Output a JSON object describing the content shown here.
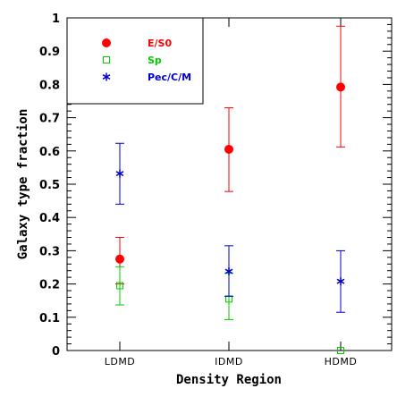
{
  "chart_data": {
    "type": "scatter",
    "title": "",
    "xlabel": "Density Region",
    "ylabel": "Galaxy type fraction",
    "categories": [
      "LDMD",
      "IDMD",
      "HDMD"
    ],
    "ylim": [
      0,
      1
    ],
    "yticks": [
      0,
      0.1,
      0.2,
      0.3,
      0.4,
      0.5,
      0.6,
      0.7,
      0.8,
      0.9,
      1
    ],
    "ytick_labels": [
      "0",
      "0.1",
      "0.2",
      "0.3",
      "0.4",
      "0.5",
      "0.6",
      "0.7",
      "0.8",
      "0.9",
      "1"
    ],
    "legend_position": "top-left",
    "grid": false,
    "series": [
      {
        "name": "E/S0",
        "color": "#ff0000",
        "marker": "filled-circle",
        "values": [
          0.275,
          0.605,
          0.792
        ],
        "err_low": [
          0.2,
          0.478,
          0.612
        ],
        "err_high": [
          0.34,
          0.73,
          0.975
        ]
      },
      {
        "name": "Sp",
        "color": "#00cc00",
        "marker": "open-square",
        "values": [
          0.195,
          0.155,
          0.0
        ],
        "err_low": [
          0.137,
          0.093,
          0.0
        ],
        "err_high": [
          0.252,
          0.232,
          0.0
        ]
      },
      {
        "name": "Pec/C/M",
        "color": "#0000cc",
        "marker": "asterisk",
        "values": [
          0.532,
          0.238,
          0.208
        ],
        "err_low": [
          0.44,
          0.163,
          0.115
        ],
        "err_high": [
          0.623,
          0.315,
          0.3
        ]
      }
    ]
  }
}
